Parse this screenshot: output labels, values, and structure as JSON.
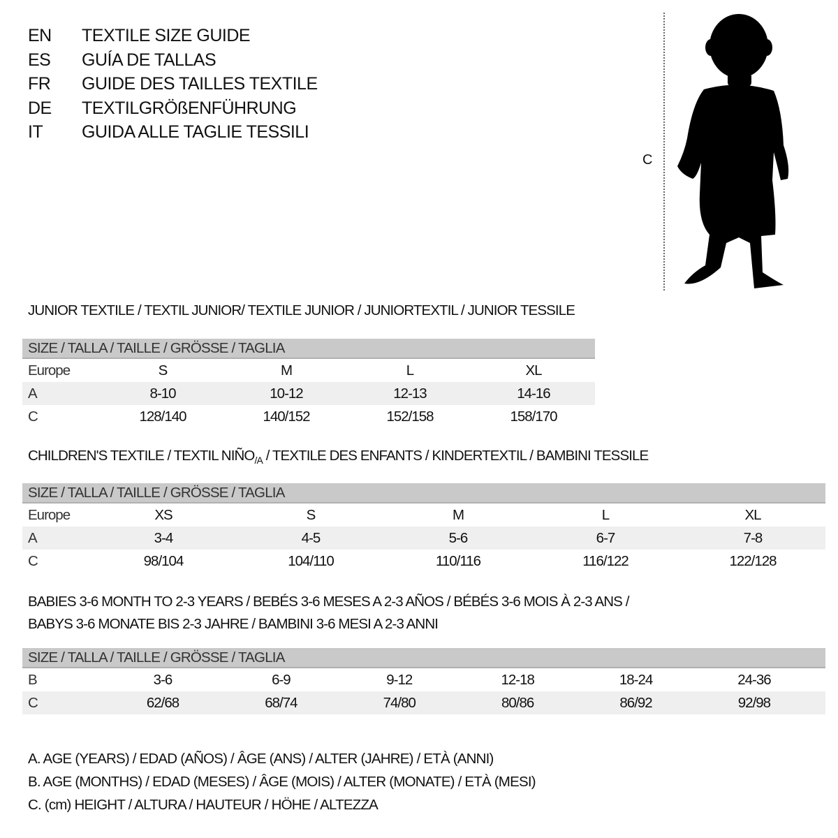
{
  "languages": [
    {
      "code": "EN",
      "title": "TEXTILE SIZE GUIDE"
    },
    {
      "code": "ES",
      "title": "GUÍA DE TALLAS"
    },
    {
      "code": "FR",
      "title": "GUIDE DES TAILLES TEXTILE"
    },
    {
      "code": "DE",
      "title": "TEXTILGRÖßENFÜHRUNG"
    },
    {
      "code": "IT",
      "title": "GUIDA ALLE TAGLIE TESSILI"
    }
  ],
  "figure": {
    "measure_label": "C",
    "icon": "baby-silhouette"
  },
  "junior": {
    "title": "JUNIOR TEXTILE / TEXTIL JUNIOR/ TEXTILE JUNIOR / JUNIORTEXTIL / JUNIOR TESSILE",
    "header": "SIZE / TALLA / TAILLE / GRÖSSE / TAGLIA",
    "rows": [
      {
        "label": "Europe",
        "values": [
          "S",
          "M",
          "L",
          "XL"
        ]
      },
      {
        "label": "A",
        "values": [
          "8-10",
          "10-12",
          "12-13",
          "14-16"
        ]
      },
      {
        "label": "C",
        "values": [
          "128/140",
          "140/152",
          "152/158",
          "158/170"
        ]
      }
    ]
  },
  "children": {
    "title_pre": "CHILDREN'S TEXTILE / TEXTIL NIÑO",
    "title_sub": "/A",
    "title_post": " / TEXTILE DES ENFANTS / KINDERTEXTIL / BAMBINI TESSILE",
    "header": "SIZE / TALLA / TAILLE / GRÖSSE / TAGLIA",
    "rows": [
      {
        "label": "Europe",
        "values": [
          "XS",
          "S",
          "M",
          "L",
          "XL"
        ]
      },
      {
        "label": "A",
        "values": [
          "3-4",
          "4-5",
          "5-6",
          "6-7",
          "7-8"
        ]
      },
      {
        "label": "C",
        "values": [
          "98/104",
          "104/110",
          "110/116",
          "116/122",
          "122/128"
        ]
      }
    ]
  },
  "babies": {
    "title_line1": "BABIES 3-6 MONTH TO 2-3 YEARS / BEBÉS 3-6 MESES A 2-3 AÑOS / BÉBÉS 3-6 MOIS À 2-3 ANS /",
    "title_line2": "BABYS 3-6 MONATE BIS 2-3 JAHRE / BAMBINI 3-6 MESI A 2-3 ANNI",
    "header": "SIZE / TALLA / TAILLE / GRÖSSE / TAGLIA",
    "rows": [
      {
        "label": "B",
        "values": [
          "3-6",
          "6-9",
          "9-12",
          "12-18",
          "18-24",
          "24-36"
        ]
      },
      {
        "label": "C",
        "values": [
          "62/68",
          "68/74",
          "74/80",
          "80/86",
          "86/92",
          "92/98"
        ]
      }
    ]
  },
  "legend": [
    "A. AGE (YEARS) / EDAD (AÑOS) / ÂGE (ANS) / ALTER (JAHRE) / ETÀ (ANNI)",
    "B. AGE (MONTHS) / EDAD (MESES) / ÂGE (MOIS) / ALTER (MONATE) / ETÀ (MESI)",
    "C. (cm) HEIGHT / ALTURA / HAUTEUR / HÖHE / ALTEZZA"
  ],
  "colors": {
    "header_bg": "#c9c9c9",
    "shade_row": "#efefef",
    "text": "#111111"
  }
}
